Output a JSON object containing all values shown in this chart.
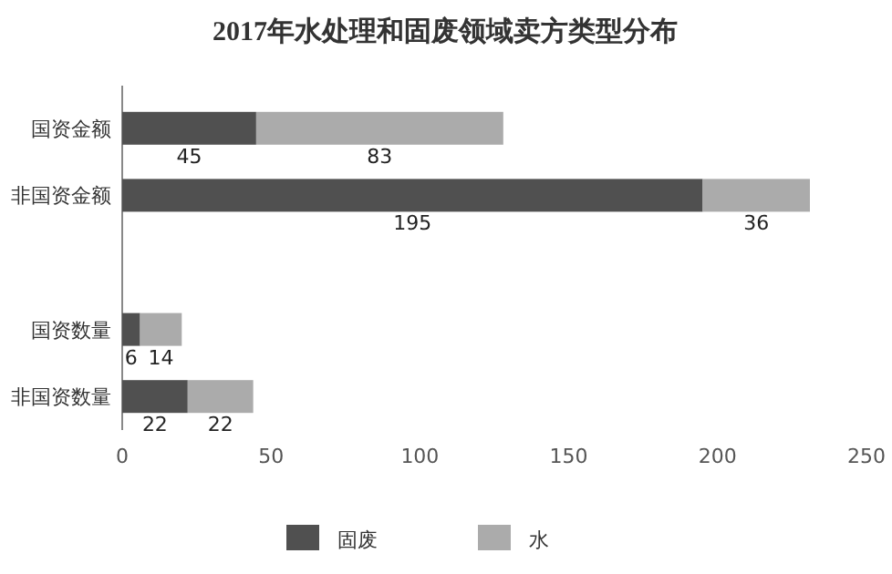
{
  "chart_data": {
    "type": "bar",
    "title": "2017年水处理和固废领域卖方类型分布",
    "orientation": "horizontal",
    "stacked": true,
    "categories": [
      "国资金额",
      "非国资金额",
      null,
      "国资数量",
      "非国资数量"
    ],
    "series": [
      {
        "name": "固废",
        "color": "#505050",
        "values": [
          45,
          195,
          null,
          6,
          22
        ]
      },
      {
        "name": "水",
        "color": "#ababab",
        "values": [
          83,
          36,
          null,
          14,
          22
        ]
      }
    ],
    "xlim": [
      0,
      250
    ],
    "xticks": [
      0,
      50,
      100,
      150,
      200,
      250
    ],
    "data_labels": true,
    "legend": "bottom"
  }
}
